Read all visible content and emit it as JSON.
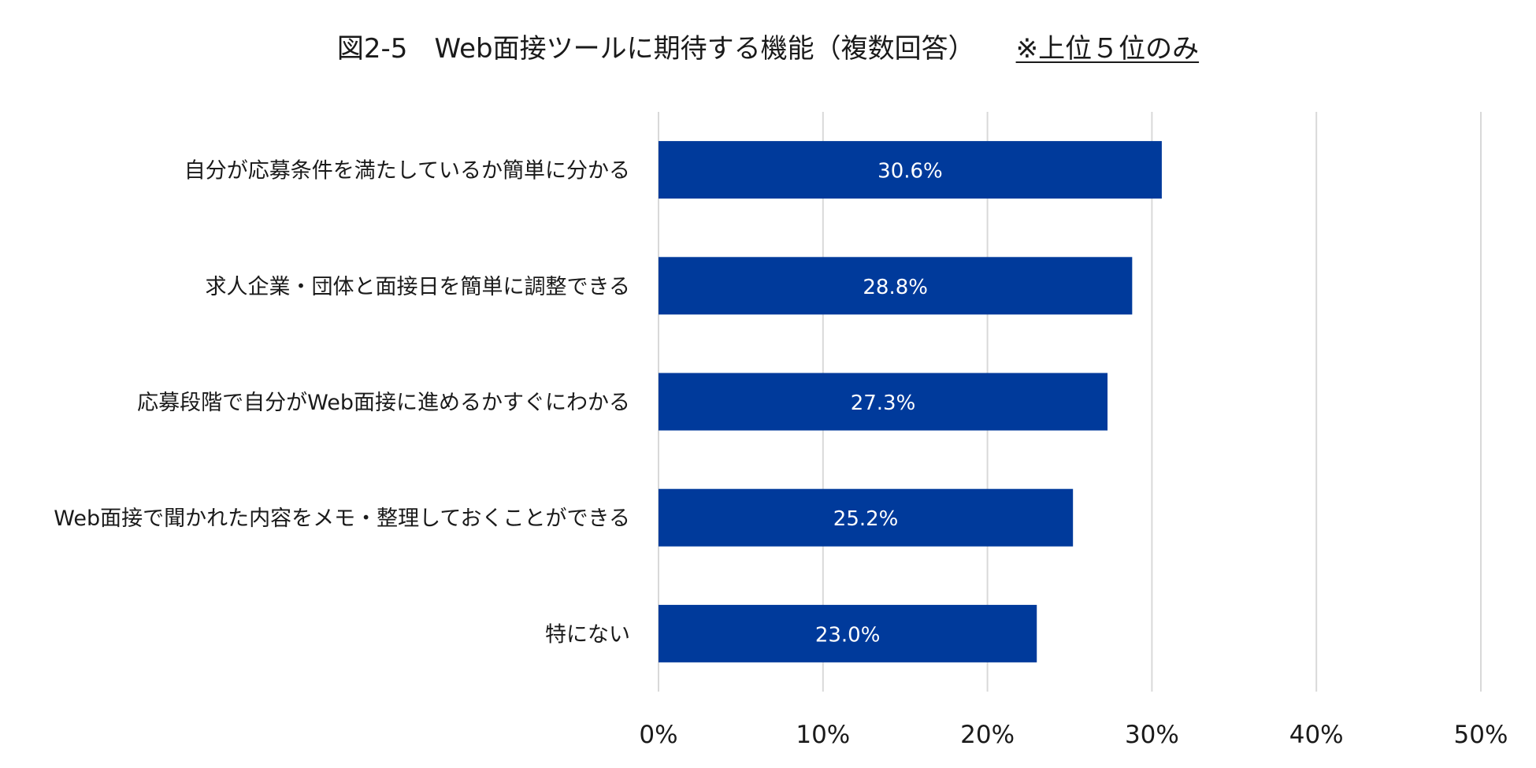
{
  "chart_data": {
    "type": "bar",
    "orientation": "horizontal",
    "title": "図2-5　Web面接ツールに期待する機能（複数回答）",
    "subtitle": "※上位５位のみ",
    "categories": [
      "自分が応募条件を満たしているか簡単に分かる",
      "求人企業・団体と面接日を簡単に調整できる",
      "応募段階で自分がWeb面接に進めるかすぐにわかる",
      "Web面接で聞かれた内容をメモ・整理しておくことができる",
      "特にない"
    ],
    "values": [
      30.6,
      28.8,
      27.3,
      25.2,
      23.0
    ],
    "value_labels": [
      "30.6%",
      "28.8%",
      "27.3%",
      "25.2%",
      "23.0%"
    ],
    "xlim": [
      0,
      50
    ],
    "xticks": [
      0,
      10,
      20,
      30,
      40,
      50
    ],
    "xtick_labels": [
      "0%",
      "10%",
      "20%",
      "30%",
      "40%",
      "50%"
    ],
    "grid": true,
    "legend": "none",
    "bar_color": "#003a9b",
    "grid_color": "#d9d9d9"
  }
}
